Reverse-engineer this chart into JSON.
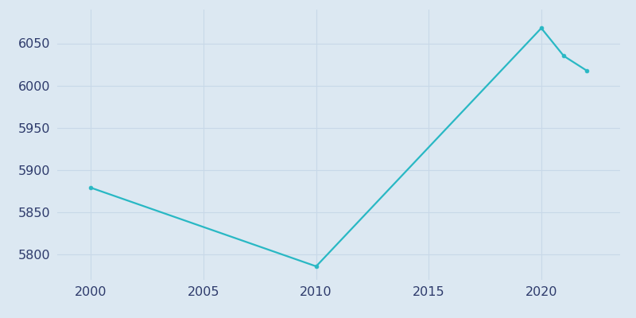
{
  "years": [
    2000,
    2010,
    2020,
    2021,
    2022
  ],
  "population": [
    5879,
    5786,
    6068,
    6035,
    6018
  ],
  "line_color": "#29b8c4",
  "marker_style": "o",
  "marker_size": 3.5,
  "bg_color": "#dce8f2",
  "axes_bg_color": "#dce8f2",
  "grid_color": "#c8d8e8",
  "xlim": [
    1998.5,
    2023.5
  ],
  "ylim": [
    5770,
    6090
  ],
  "xticks": [
    2000,
    2005,
    2010,
    2015,
    2020
  ],
  "yticks": [
    5800,
    5850,
    5900,
    5950,
    6000,
    6050
  ],
  "tick_label_color": "#2d3a6b",
  "tick_fontsize": 11.5
}
